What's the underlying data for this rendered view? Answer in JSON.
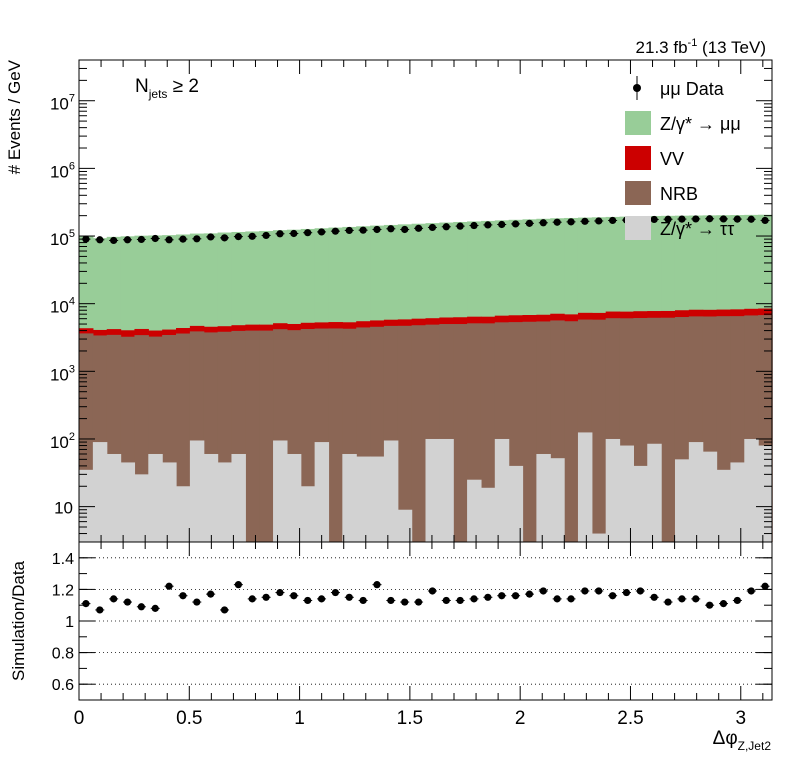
{
  "header": {
    "lumi_prefix": "21.3 fb",
    "lumi_exp": "-1",
    "lumi_suffix": " (13 TeV)"
  },
  "annotation": {
    "text_main": "N",
    "text_sub": "jets",
    "text_cond": " ≥ 2"
  },
  "legend": {
    "items": [
      {
        "key": "data",
        "label": "μμ Data",
        "style": "marker",
        "color": "#000000"
      },
      {
        "key": "zmumu",
        "label": "Z/γ* → μμ",
        "style": "box",
        "color": "#98cd98"
      },
      {
        "key": "vv",
        "label": "VV",
        "style": "box",
        "color": "#cc0000"
      },
      {
        "key": "nrb",
        "label": "NRB",
        "style": "box",
        "color": "#8b6655"
      },
      {
        "key": "ztautau",
        "label": "Z/γ* → ττ",
        "style": "box",
        "color": "#d2d2d2"
      }
    ]
  },
  "colors": {
    "zmumu": "#98cd98",
    "vv": "#cc0000",
    "nrb": "#8b6655",
    "ztautau": "#d2d2d2",
    "data": "#000000"
  },
  "chart_data": [
    {
      "type": "bar",
      "subtype": "stacked-histogram",
      "ylabel": "# Events / GeV",
      "yscale": "log",
      "xlim": [
        0,
        3.1416
      ],
      "ylim": [
        3,
        40000000
      ],
      "yticks": [
        10,
        100,
        1000,
        10000,
        100000,
        1000000,
        10000000
      ],
      "ytick_labels": [
        {
          "mant": "10",
          "exp": ""
        },
        {
          "mant": "10",
          "exp": "2"
        },
        {
          "mant": "10",
          "exp": "3"
        },
        {
          "mant": "10",
          "exp": "4"
        },
        {
          "mant": "10",
          "exp": "5"
        },
        {
          "mant": "10",
          "exp": "6"
        },
        {
          "mant": "10",
          "exp": "7"
        }
      ],
      "nbins": 50,
      "series": [
        {
          "name": "Z/γ* → ττ",
          "values": [
            35,
            90,
            60,
            45,
            30,
            60,
            45,
            20,
            95,
            60,
            45,
            60,
            2,
            2,
            95,
            60,
            20,
            90,
            2,
            60,
            55,
            55,
            95,
            9,
            2,
            100,
            100,
            2,
            25,
            19,
            100,
            40,
            2,
            60,
            52,
            2,
            125,
            4,
            100,
            80,
            40,
            85,
            2,
            50,
            90,
            65,
            35,
            45,
            100,
            80
          ]
        },
        {
          "name": "NRB",
          "values": [
            3600,
            3300,
            3400,
            3200,
            3400,
            3200,
            3400,
            3600,
            3800,
            3700,
            3800,
            3900,
            4000,
            4000,
            4100,
            4000,
            4200,
            4200,
            4300,
            4200,
            4400,
            4500,
            4600,
            4700,
            4800,
            4800,
            4900,
            5000,
            5100,
            5100,
            5200,
            5300,
            5400,
            5400,
            5600,
            5500,
            5700,
            5800,
            6000,
            6000,
            6100,
            6100,
            6200,
            6300,
            6400,
            6400,
            6500,
            6500,
            6600,
            6700
          ]
        },
        {
          "name": "VV",
          "values": [
            700,
            700,
            750,
            800,
            800,
            750,
            700,
            750,
            800,
            800,
            800,
            850,
            900,
            900,
            950,
            950,
            1000,
            1000,
            1050,
            1050,
            1050,
            1100,
            1100,
            1150,
            1200,
            1200,
            1250,
            1300,
            1300,
            1300,
            1350,
            1400,
            1400,
            1400,
            1450,
            1450,
            1500,
            1500,
            1550,
            1550,
            1600,
            1600,
            1600,
            1650,
            1650,
            1650,
            1650,
            1700,
            1700,
            1700
          ]
        },
        {
          "name": "Z/γ* → μμ",
          "values": [
            94000,
            89000,
            93000,
            95000,
            97000,
            98000,
            99000,
            101000,
            104000,
            105000,
            108000,
            110000,
            112000,
            114000,
            117000,
            119000,
            122000,
            125000,
            128000,
            131000,
            134000,
            137000,
            140000,
            143000,
            146000,
            149000,
            152000,
            155000,
            158000,
            161000,
            164000,
            167000,
            170000,
            173000,
            176000,
            178000,
            180000,
            182000,
            184000,
            186000,
            188000,
            190000,
            191000,
            192000,
            193000,
            194000,
            195000,
            196000,
            197000,
            198000
          ]
        }
      ],
      "data_points": {
        "name": "μμ Data",
        "values": [
          90000,
          88000,
          86000,
          88000,
          89000,
          92000,
          88000,
          90000,
          91000,
          97000,
          94000,
          98000,
          99000,
          102000,
          108000,
          109000,
          112000,
          115000,
          118000,
          121000,
          122000,
          125000,
          128000,
          125000,
          130000,
          134000,
          137000,
          140000,
          143000,
          146000,
          148000,
          151000,
          154000,
          157000,
          160000,
          162000,
          165000,
          167000,
          170000,
          172000,
          174000,
          176000,
          177000,
          178000,
          179000,
          180000,
          179000,
          178000,
          177000,
          170000
        ]
      }
    },
    {
      "type": "scatter",
      "subtype": "ratio",
      "ylabel": "Simulation/Data",
      "xlabel_main": "Δφ",
      "xlabel_sub": "Z,Jet2",
      "xlim": [
        0,
        3.1416
      ],
      "ylim": [
        0.5,
        1.5
      ],
      "yticks": [
        0.6,
        0.8,
        1,
        1.2,
        1.4
      ],
      "ytick_labels": [
        "0.6",
        "0.8",
        "1",
        "1.2",
        "1.4"
      ],
      "xticks": [
        0,
        0.5,
        1,
        1.5,
        2,
        2.5,
        3
      ],
      "xtick_labels": [
        "0",
        "0.5",
        "1",
        "1.5",
        "2",
        "2.5",
        "3"
      ],
      "grid_y": true,
      "values": [
        1.11,
        1.07,
        1.14,
        1.12,
        1.09,
        1.08,
        1.22,
        1.16,
        1.12,
        1.17,
        1.07,
        1.23,
        1.14,
        1.15,
        1.18,
        1.16,
        1.13,
        1.14,
        1.18,
        1.15,
        1.13,
        1.23,
        1.13,
        1.12,
        1.12,
        1.19,
        1.13,
        1.13,
        1.14,
        1.15,
        1.16,
        1.16,
        1.17,
        1.19,
        1.14,
        1.14,
        1.19,
        1.19,
        1.16,
        1.18,
        1.19,
        1.15,
        1.12,
        1.14,
        1.14,
        1.1,
        1.11,
        1.13,
        1.19,
        1.22
      ],
      "errors": 0.02
    }
  ]
}
